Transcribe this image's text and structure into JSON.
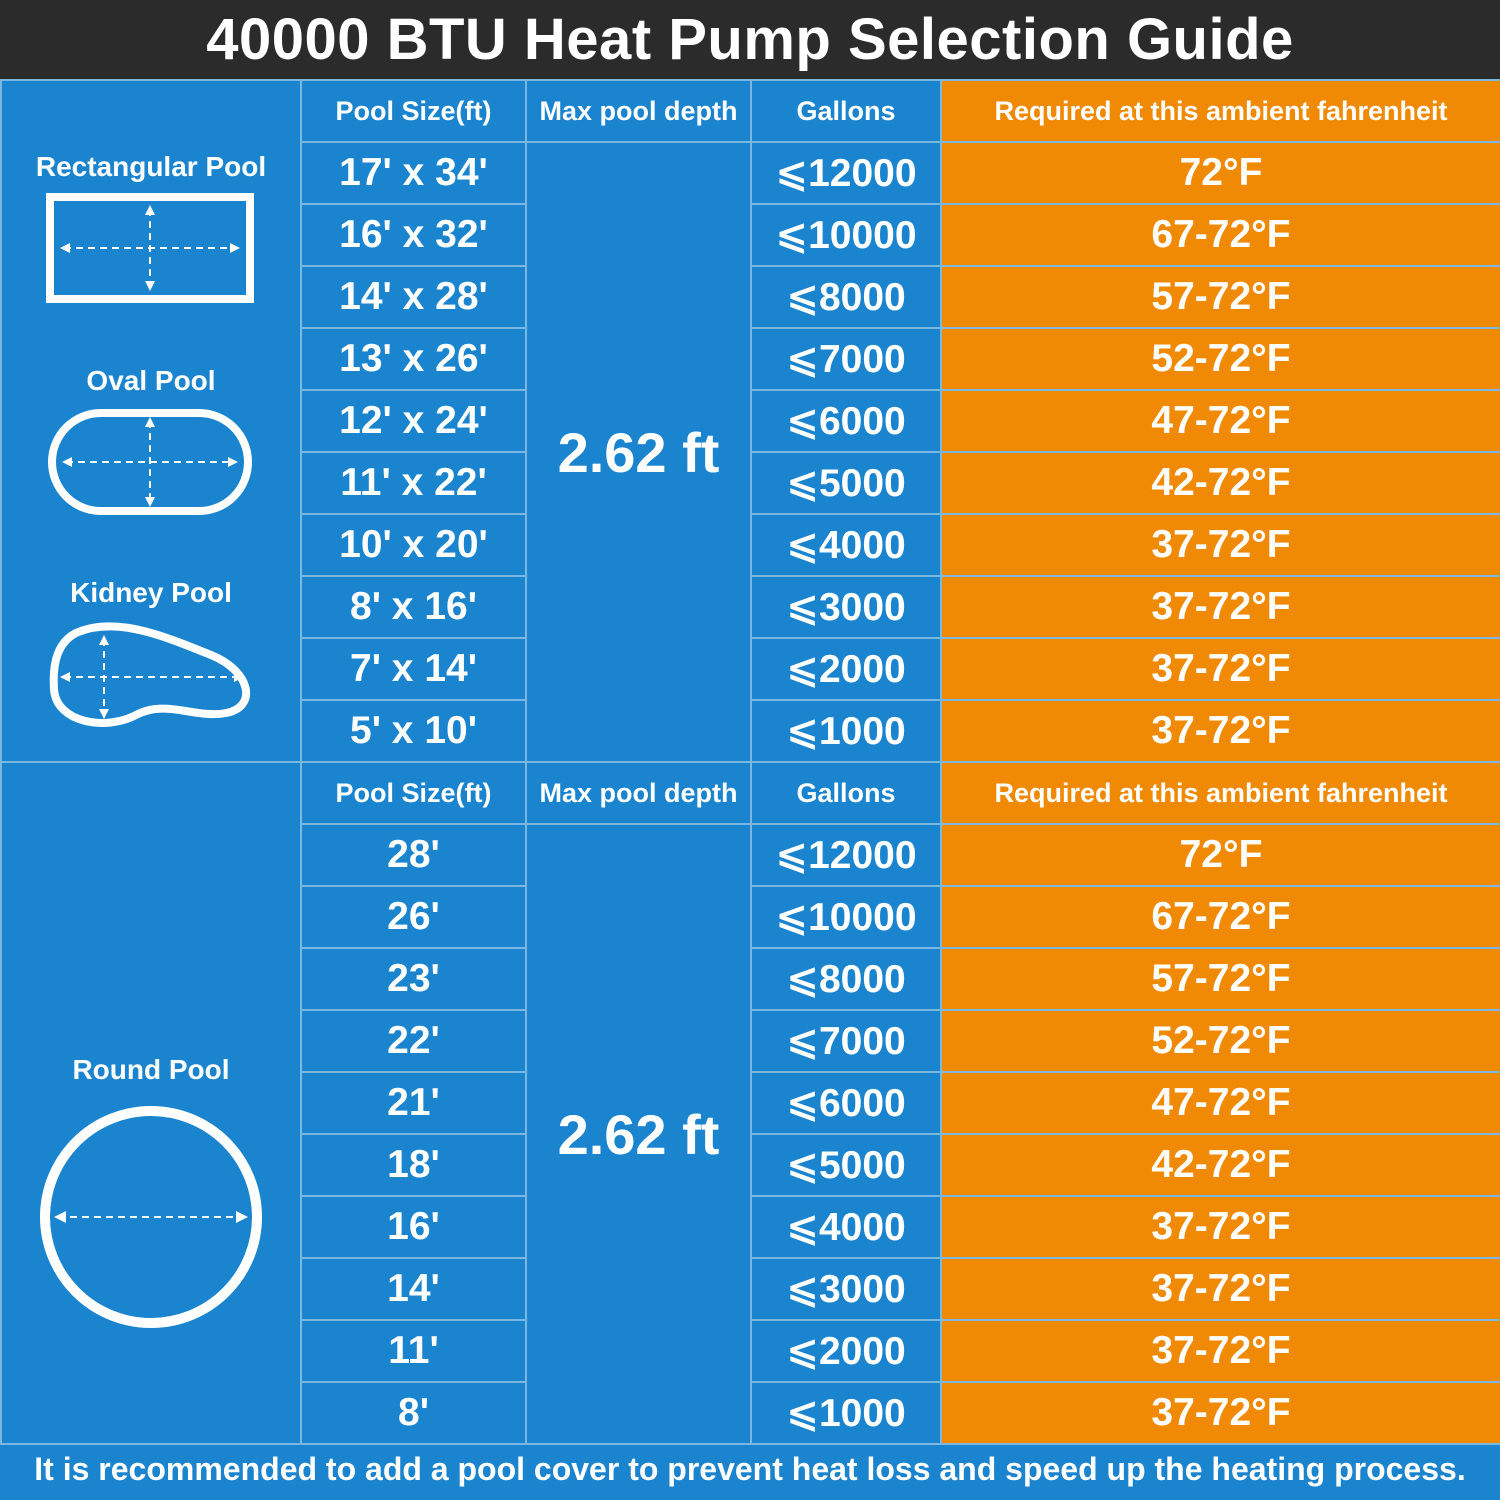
{
  "title": "40000 BTU Heat Pump Selection Guide",
  "headers": {
    "pool_size": "Pool Size(ft)",
    "max_depth": "Max pool depth",
    "gallons": "Gallons",
    "temperature": "Required at this ambient fahrenheit"
  },
  "shapes": {
    "rectangular": "Rectangular Pool",
    "oval": "Oval Pool",
    "kidney": "Kidney Pool",
    "round": "Round Pool"
  },
  "section1": {
    "depth": "2.62 ft",
    "rows": [
      {
        "size": "17' x 34'",
        "gallons": "⩽12000",
        "temp": "72°F"
      },
      {
        "size": "16' x 32'",
        "gallons": "⩽10000",
        "temp": "67-72°F"
      },
      {
        "size": "14' x 28'",
        "gallons": "⩽8000",
        "temp": "57-72°F"
      },
      {
        "size": "13' x 26'",
        "gallons": "⩽7000",
        "temp": "52-72°F"
      },
      {
        "size": "12' x 24'",
        "gallons": "⩽6000",
        "temp": "47-72°F"
      },
      {
        "size": "11' x 22'",
        "gallons": "⩽5000",
        "temp": "42-72°F"
      },
      {
        "size": "10' x 20'",
        "gallons": "⩽4000",
        "temp": "37-72°F"
      },
      {
        "size": "8' x 16'",
        "gallons": "⩽3000",
        "temp": "37-72°F"
      },
      {
        "size": "7' x 14'",
        "gallons": "⩽2000",
        "temp": "37-72°F"
      },
      {
        "size": "5' x 10'",
        "gallons": "⩽1000",
        "temp": "37-72°F"
      }
    ]
  },
  "section2": {
    "depth": "2.62 ft",
    "rows": [
      {
        "size": "28'",
        "gallons": "⩽12000",
        "temp": "72°F"
      },
      {
        "size": "26'",
        "gallons": "⩽10000",
        "temp": "67-72°F"
      },
      {
        "size": "23'",
        "gallons": "⩽8000",
        "temp": "57-72°F"
      },
      {
        "size": "22'",
        "gallons": "⩽7000",
        "temp": "52-72°F"
      },
      {
        "size": "21'",
        "gallons": "⩽6000",
        "temp": "47-72°F"
      },
      {
        "size": "18'",
        "gallons": "⩽5000",
        "temp": "42-72°F"
      },
      {
        "size": "16'",
        "gallons": "⩽4000",
        "temp": "37-72°F"
      },
      {
        "size": "14'",
        "gallons": "⩽3000",
        "temp": "37-72°F"
      },
      {
        "size": "11'",
        "gallons": "⩽2000",
        "temp": "37-72°F"
      },
      {
        "size": "8'",
        "gallons": "⩽1000",
        "temp": "37-72°F"
      }
    ]
  },
  "footer": "It is recommended to add a pool cover to prevent heat loss and speed up the heating process.",
  "colors": {
    "blue": "#1a84cf",
    "orange": "#f08a05",
    "title_bg": "#2b2b2b"
  }
}
